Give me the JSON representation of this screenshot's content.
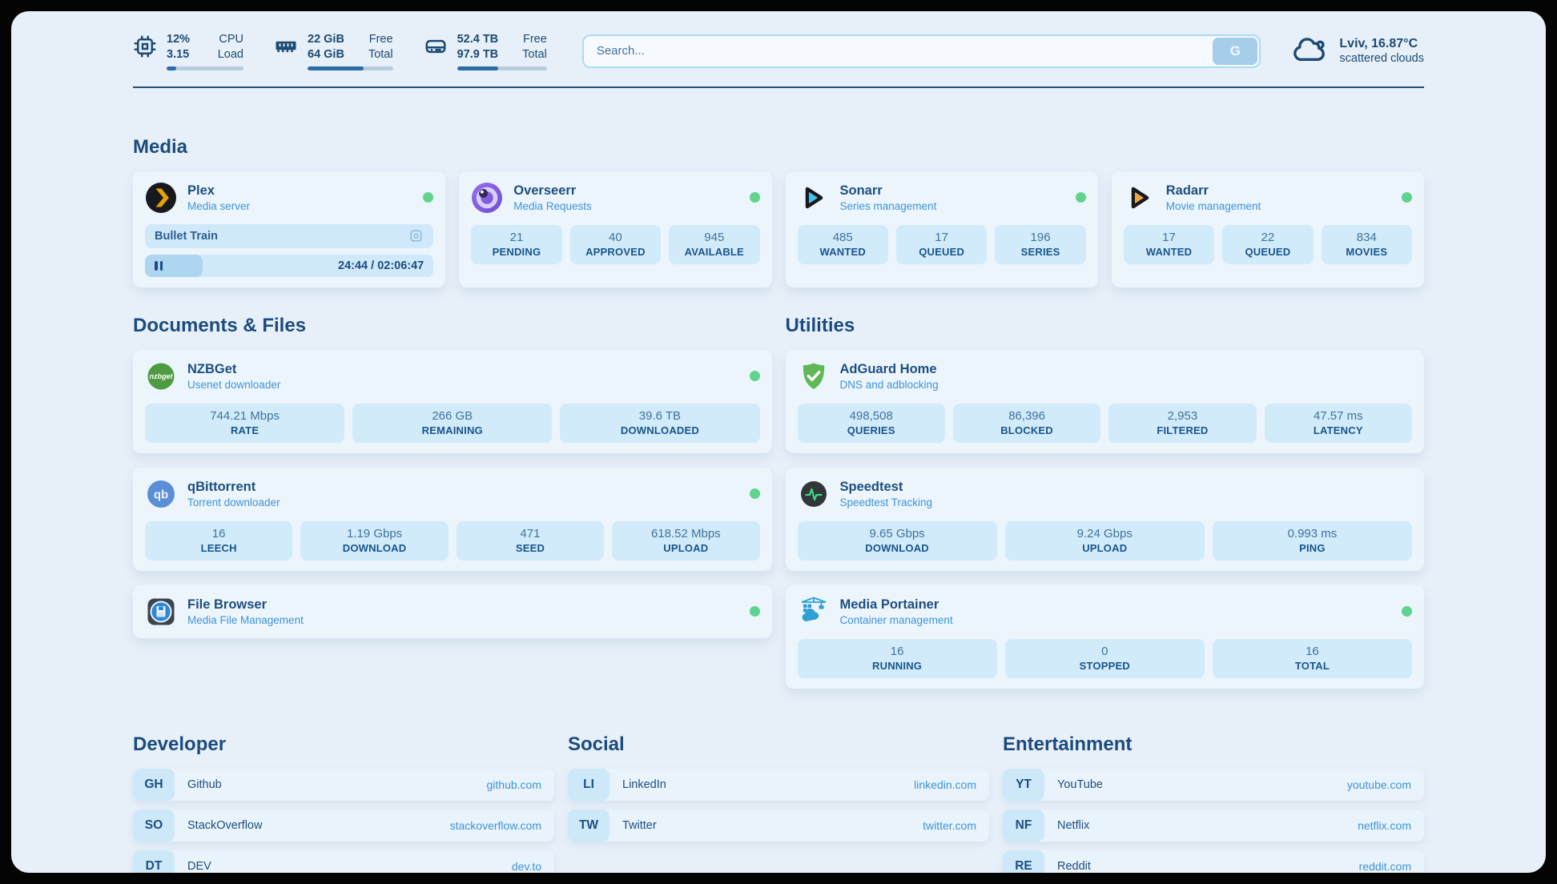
{
  "topbar": {
    "stats": [
      {
        "icon": "cpu-icon",
        "values": [
          "12%",
          "3.15"
        ],
        "labels": [
          "CPU",
          "Load"
        ],
        "progress_pct": 13
      },
      {
        "icon": "ram-icon",
        "values": [
          "22 GiB",
          "64 GiB"
        ],
        "labels": [
          "Free",
          "Total"
        ],
        "progress_pct": 66
      },
      {
        "icon": "disk-icon",
        "values": [
          "52.4 TB",
          "97.9 TB"
        ],
        "labels": [
          "Free",
          "Total"
        ],
        "progress_pct": 46
      }
    ],
    "search": {
      "placeholder": "Search...",
      "button": "G"
    },
    "weather": {
      "headline": "Lviv, 16.87°C",
      "sub": "scattered clouds"
    }
  },
  "media": {
    "title": "Media",
    "plex": {
      "name": "Plex",
      "subtitle": "Media server",
      "now_playing": "Bullet Train",
      "time": "24:44 / 02:06:47",
      "progress_pct": 20
    },
    "overseerr": {
      "name": "Overseerr",
      "subtitle": "Media Requests",
      "stats": [
        {
          "value": "21",
          "label": "PENDING"
        },
        {
          "value": "40",
          "label": "APPROVED"
        },
        {
          "value": "945",
          "label": "AVAILABLE"
        }
      ]
    },
    "sonarr": {
      "name": "Sonarr",
      "subtitle": "Series management",
      "stats": [
        {
          "value": "485",
          "label": "WANTED"
        },
        {
          "value": "17",
          "label": "QUEUED"
        },
        {
          "value": "196",
          "label": "SERIES"
        }
      ]
    },
    "radarr": {
      "name": "Radarr",
      "subtitle": "Movie management",
      "stats": [
        {
          "value": "17",
          "label": "WANTED"
        },
        {
          "value": "22",
          "label": "QUEUED"
        },
        {
          "value": "834",
          "label": "MOVIES"
        }
      ]
    }
  },
  "documents": {
    "title": "Documents & Files",
    "nzbget": {
      "name": "NZBGet",
      "subtitle": "Usenet downloader",
      "stats": [
        {
          "value": "744.21 Mbps",
          "label": "RATE"
        },
        {
          "value": "266 GB",
          "label": "REMAINING"
        },
        {
          "value": "39.6 TB",
          "label": "DOWNLOADED"
        }
      ]
    },
    "qbittorrent": {
      "name": "qBittorrent",
      "subtitle": "Torrent downloader",
      "stats": [
        {
          "value": "16",
          "label": "LEECH"
        },
        {
          "value": "1.19 Gbps",
          "label": "DOWNLOAD"
        },
        {
          "value": "471",
          "label": "SEED"
        },
        {
          "value": "618.52 Mbps",
          "label": "UPLOAD"
        }
      ]
    },
    "filebrowser": {
      "name": "File Browser",
      "subtitle": "Media File Management"
    }
  },
  "utilities": {
    "title": "Utilities",
    "adguard": {
      "name": "AdGuard Home",
      "subtitle": "DNS and adblocking",
      "stats": [
        {
          "value": "498,508",
          "label": "QUERIES"
        },
        {
          "value": "86,396",
          "label": "BLOCKED"
        },
        {
          "value": "2,953",
          "label": "FILTERED"
        },
        {
          "value": "47.57 ms",
          "label": "LATENCY"
        }
      ]
    },
    "speedtest": {
      "name": "Speedtest",
      "subtitle": "Speedtest Tracking",
      "stats": [
        {
          "value": "9.65 Gbps",
          "label": "DOWNLOAD"
        },
        {
          "value": "9.24 Gbps",
          "label": "UPLOAD"
        },
        {
          "value": "0.993 ms",
          "label": "PING"
        }
      ]
    },
    "portainer": {
      "name": "Media Portainer",
      "subtitle": "Container management",
      "stats": [
        {
          "value": "16",
          "label": "RUNNING"
        },
        {
          "value": "0",
          "label": "STOPPED"
        },
        {
          "value": "16",
          "label": "TOTAL"
        }
      ]
    }
  },
  "links": {
    "developer": {
      "title": "Developer",
      "items": [
        {
          "abbr": "GH",
          "name": "Github",
          "url": "github.com"
        },
        {
          "abbr": "SO",
          "name": "StackOverflow",
          "url": "stackoverflow.com"
        },
        {
          "abbr": "DT",
          "name": "DEV",
          "url": "dev.to"
        }
      ]
    },
    "social": {
      "title": "Social",
      "items": [
        {
          "abbr": "LI",
          "name": "LinkedIn",
          "url": "linkedin.com"
        },
        {
          "abbr": "TW",
          "name": "Twitter",
          "url": "twitter.com"
        }
      ]
    },
    "entertainment": {
      "title": "Entertainment",
      "items": [
        {
          "abbr": "YT",
          "name": "YouTube",
          "url": "youtube.com"
        },
        {
          "abbr": "NF",
          "name": "Netflix",
          "url": "netflix.com"
        },
        {
          "abbr": "RE",
          "name": "Reddit",
          "url": "reddit.com"
        }
      ]
    }
  },
  "colors": {
    "accent": "#3e93d8",
    "navy": "#1d4e80",
    "status_green": "#5ed48e"
  }
}
